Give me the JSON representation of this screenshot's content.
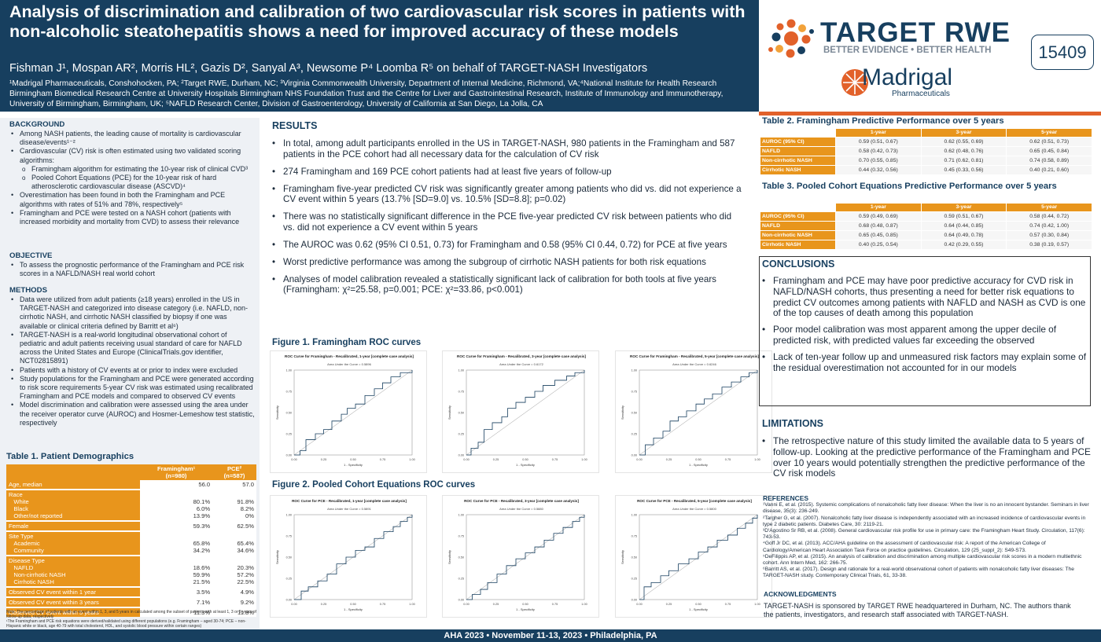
{
  "header": {
    "title": "Analysis of discrimination and calibration of two cardiovascular risk scores in patients with non-alcoholic steatohepatitis shows a need for improved accuracy of these models",
    "authors": "Fishman J¹, Mospan AR², Morris HL², Gazis D², Sanyal A³, Newsome P⁴ Loomba R⁵ on behalf of TARGET-NASH Investigators",
    "affiliations": "¹Madrigal Pharmaceuticals, Conshohocken, PA; ²Target RWE, Durham, NC; ³Virginia Commonwealth University, Department of Internal Medicine, Richmond, VA;⁴National Institute for Health Research Birmingham Biomedical Research Centre at University Hospitals Birmingham NHS Foundation Trust and the Centre for Liver and Gastrointestinal Research, Institute of Immunology and Immunotherapy, University of Birmingham, Birmingham, UK; ⁵NAFLD Research Center, Division of Gastroenterology, University of California at San Diego, La Jolla, CA",
    "logo_target_name": "TARGET RWE",
    "logo_target_tagline": "BETTER EVIDENCE • BETTER HEALTH",
    "logo_madrigal_name": "Madrigal",
    "logo_madrigal_sub": "Pharmaceuticals",
    "poster_number": "15409",
    "colors": {
      "navy": "#173f5f",
      "orange": "#e8951c",
      "accent": "#e2612a"
    }
  },
  "background": {
    "heading": "BACKGROUND",
    "items": [
      {
        "text": "Among NASH patients, the leading cause of mortality is cardiovascular disease/events¹⁻²"
      },
      {
        "text": "Cardiovascular (CV) risk is often estimated using two validated scoring algorithms:",
        "sub": [
          "Framingham algorithm for estimating the 10-year risk of clinical CVD³",
          "Pooled Cohort Equations (PCE) for the 10-year risk of hard atherosclerotic cardiovascular disease (ASCVD)⁴"
        ]
      },
      {
        "text": "Overestimation has been found in both the Framingham and PCE algorithms with rates of 51% and 78%, respectively⁵"
      },
      {
        "text": "Framingham and PCE were tested on a NASH cohort (patients with increased morbidity and mortality from CVD) to assess their relevance"
      }
    ]
  },
  "objective": {
    "heading": "OBJECTIVE",
    "items": [
      "To assess the prognostic performance of the Framingham and PCE risk scores in a NAFLD/NASH real world cohort"
    ]
  },
  "methods": {
    "heading": "METHODS",
    "items": [
      "Data were utilized from adult patients (≥18 years) enrolled in the US in TARGET-NASH and categorized into disease category (i.e. NAFLD, non-cirrhotic NASH, and cirrhotic NASH classified by biopsy if one was available or clinical criteria defined by Barritt et al⁶)",
      "TARGET-NASH is a real-world longitudinal observational cohort of pediatric and adult patients receiving usual standard of care for NAFLD across the United States and Europe (ClinicalTrials.gov identifier, NCT02815891)",
      "Patients with a history of CV events at or prior to index were excluded",
      "Study populations for the Framingham and PCE were generated according to risk score requirements 5-year CV risk was estimated using recalibrated Framingham and PCE models and compared to observed CV events",
      "Model discrimination and calibration were assessed using the area under the receiver operator curve (AUROC) and Hosmer-Lemeshow test statistic, respectively"
    ]
  },
  "table1": {
    "heading": "Table 1. Patient Demographics",
    "col_fram": "Framingham¹",
    "col_fram_n": "(n=980)",
    "col_pce": "PCE²",
    "col_pce_n": "(n=587)",
    "rows": [
      {
        "label": "Age, median",
        "fram": "56.0",
        "pce": "57.0"
      },
      {
        "label": "Race",
        "sub": [
          "White",
          "Black",
          "Other/not reported"
        ],
        "fram": [
          "80.1%",
          "6.0%",
          "13.9%"
        ],
        "pce": [
          "91.8%",
          "8.2%",
          "0%"
        ]
      },
      {
        "label": "Female",
        "fram": "59.3%",
        "pce": "62.5%"
      },
      {
        "label": "Site Type",
        "sub": [
          "Academic",
          "Community"
        ],
        "fram": [
          "65.8%",
          "34.2%"
        ],
        "pce": [
          "65.4%",
          "34.6%"
        ]
      },
      {
        "label": "Disease Type",
        "sub": [
          "NAFLD",
          "Non-cirrhotic NASH",
          "Cirrhotic NASH"
        ],
        "fram": [
          "18.6%",
          "59.9%",
          "21.5%"
        ],
        "pce": [
          "20.3%",
          "57.2%",
          "22.5%"
        ]
      },
      {
        "label": "Observed CV event within 1 year",
        "fram": "3.5%",
        "pce": "4.9%"
      },
      {
        "label": "Observed CV event within 3 years",
        "fram": "7.1%",
        "pce": "9.2%"
      },
      {
        "label": "Observed CV event within 5 years",
        "fram": "11.3%",
        "pce": "11.8%"
      }
    ],
    "note1": "Note: The percentage of patients with an event within 1, 3, and 5 years in calculated among the subset of patients with at least 1, 3 or 5 years of follow-up data, respectively",
    "note2": "¹The Framingham and PCE risk equations were derived/validated using different populations (e.g. Framingham – aged 30-74; PCE – non-Hispanic white or black, age 40-79 with total cholesterol, HDL, and systolic blood pressure within certain ranges)"
  },
  "results": {
    "heading": "RESULTS",
    "items": [
      "In total, among adult participants enrolled in the US in TARGET-NASH, 980 patients in the Framingham and 587 patients in the PCE cohort had all necessary data for the calculation of CV risk",
      "274 Framingham and 169 PCE cohort patients had at least five years of follow-up",
      "Framingham five-year predicted CV risk was significantly greater among patients who did vs. did not experience a CV event within 5 years (13.7% [SD=9.0] vs. 10.5% [SD=8.8]; p=0.02)",
      "There was no statistically significant difference in the PCE five-year predicted CV risk between patients who did vs. did not experience a CV event within 5 years",
      "The AUROC was 0.62 (95% CI 0.51, 0.73) for Framingham and 0.58 (95% CI 0.44, 0.72) for PCE at five years",
      "Worst predictive performance was among the subgroup of cirrhotic NASH patients for both risk equations",
      "Analyses of model calibration revealed a statistically significant lack of calibration for both tools at five years (Framingham: χ²=25.58, p=0.001; PCE: χ²=33.86, p<0.001)"
    ]
  },
  "figure1": {
    "heading": "Figure 1. Framingham ROC curves",
    "charts": [
      {
        "title": "ROC Curve for Framingham - Recalibrated, 1-year [complete case analysis]",
        "subtitle": "Area Under the Curve = 0.5896"
      },
      {
        "title": "ROC Curve for Framingham - Recalibrated, 3-year [complete case analysis]",
        "subtitle": "Area Under the Curve = 0.6172"
      },
      {
        "title": "ROC Curve for Framingham - Recalibrated, 5-year [complete case analysis]",
        "subtitle": "Area Under the Curve = 0.6246"
      }
    ]
  },
  "figure2": {
    "heading": "Figure 2. Pooled Cohort Equations ROC curves",
    "charts": [
      {
        "title": "ROC Curve for PCE - Recalibrated, 1-year [complete case analysis]",
        "subtitle": "Area Under the Curve = 0.5891"
      },
      {
        "title": "ROC Curve for PCE - Recalibrated, 3-year [complete case analysis]",
        "subtitle": "Area Under the Curve = 0.5880"
      },
      {
        "title": "ROC Curve for PCE - Recalibrated, 5-year [complete case analysis]",
        "subtitle": "Area Under the Curve = 0.5800"
      }
    ]
  },
  "chart_data": [
    {
      "type": "line",
      "title": "ROC Curve for Framingham - Recalibrated, 1-year [complete case analysis]",
      "subtitle": "Area Under the Curve = 0.5896",
      "xlabel": "1 - Specificity",
      "ylabel": "Sensitivity",
      "xlim": [
        0,
        1
      ],
      "ylim": [
        0,
        1
      ],
      "ticks": [
        "0.00",
        "0.25",
        "0.50",
        "0.75",
        "1.00"
      ],
      "series": [
        {
          "x": [
            0,
            0.05,
            0.1,
            0.18,
            0.25,
            0.32,
            0.4,
            0.45,
            0.52,
            0.6,
            0.68,
            0.75,
            0.82,
            0.9,
            1
          ],
          "y": [
            0,
            0.05,
            0.18,
            0.25,
            0.3,
            0.4,
            0.48,
            0.55,
            0.6,
            0.7,
            0.78,
            0.85,
            0.92,
            0.97,
            1
          ]
        },
        {
          "x": [
            0,
            1
          ],
          "y": [
            0,
            1
          ]
        }
      ]
    },
    {
      "type": "line",
      "title": "ROC Curve for Framingham - Recalibrated, 3-year [complete case analysis]",
      "subtitle": "Area Under the Curve = 0.6172",
      "xlabel": "1 - Specificity",
      "ylabel": "Sensitivity",
      "xlim": [
        0,
        1
      ],
      "ylim": [
        0,
        1
      ],
      "ticks": [
        "0.00",
        "0.25",
        "0.50",
        "0.75",
        "1.00"
      ],
      "series": [
        {
          "x": [
            0,
            0.04,
            0.1,
            0.15,
            0.22,
            0.3,
            0.35,
            0.42,
            0.5,
            0.58,
            0.65,
            0.75,
            0.85,
            0.92,
            1
          ],
          "y": [
            0,
            0.08,
            0.15,
            0.3,
            0.38,
            0.45,
            0.55,
            0.62,
            0.68,
            0.75,
            0.82,
            0.88,
            0.93,
            0.97,
            1
          ]
        },
        {
          "x": [
            0,
            1
          ],
          "y": [
            0,
            1
          ]
        }
      ]
    },
    {
      "type": "line",
      "title": "ROC Curve for Framingham - Recalibrated, 5-year [complete case analysis]",
      "subtitle": "Area Under the Curve = 0.6246",
      "xlabel": "1 - Specificity",
      "ylabel": "Sensitivity",
      "xlim": [
        0,
        1
      ],
      "ylim": [
        0,
        1
      ],
      "ticks": [
        "0.00",
        "0.25",
        "0.50",
        "0.75",
        "1.00"
      ],
      "series": [
        {
          "x": [
            0,
            0.05,
            0.12,
            0.2,
            0.26,
            0.33,
            0.4,
            0.48,
            0.55,
            0.62,
            0.7,
            0.78,
            0.86,
            0.93,
            1
          ],
          "y": [
            0,
            0.12,
            0.2,
            0.28,
            0.4,
            0.45,
            0.52,
            0.6,
            0.66,
            0.72,
            0.8,
            0.86,
            0.92,
            0.97,
            1
          ]
        },
        {
          "x": [
            0,
            1
          ],
          "y": [
            0,
            1
          ]
        }
      ]
    },
    {
      "type": "line",
      "title": "ROC Curve for PCE - Recalibrated, 1-year [complete case analysis]",
      "subtitle": "Area Under the Curve = 0.5891",
      "xlabel": "1 - Specificity",
      "ylabel": "Sensitivity",
      "xlim": [
        0,
        1
      ],
      "ylim": [
        0,
        1
      ],
      "ticks": [
        "0.00",
        "0.25",
        "0.50",
        "0.75",
        "1.00"
      ],
      "series": [
        {
          "x": [
            0,
            0.06,
            0.12,
            0.2,
            0.28,
            0.36,
            0.44,
            0.52,
            0.6,
            0.68,
            0.76,
            0.84,
            0.9,
            0.96,
            1
          ],
          "y": [
            0,
            0.1,
            0.15,
            0.22,
            0.3,
            0.42,
            0.5,
            0.58,
            0.62,
            0.72,
            0.8,
            0.86,
            0.92,
            0.97,
            1
          ]
        },
        {
          "x": [
            0,
            1
          ],
          "y": [
            0,
            1
          ]
        }
      ]
    },
    {
      "type": "line",
      "title": "ROC Curve for PCE - Recalibrated, 3-year [complete case analysis]",
      "subtitle": "Area Under the Curve = 0.5880",
      "xlabel": "1 - Specificity",
      "ylabel": "Sensitivity",
      "xlim": [
        0,
        1
      ],
      "ylim": [
        0,
        1
      ],
      "ticks": [
        "0.00",
        "0.25",
        "0.50",
        "0.75",
        "1.00"
      ],
      "series": [
        {
          "x": [
            0,
            0.05,
            0.12,
            0.18,
            0.26,
            0.34,
            0.42,
            0.5,
            0.58,
            0.66,
            0.74,
            0.82,
            0.9,
            0.96,
            1
          ],
          "y": [
            0,
            0.06,
            0.12,
            0.2,
            0.3,
            0.4,
            0.48,
            0.55,
            0.62,
            0.7,
            0.78,
            0.85,
            0.92,
            0.97,
            1
          ]
        },
        {
          "x": [
            0,
            1
          ],
          "y": [
            0,
            1
          ]
        }
      ]
    },
    {
      "type": "line",
      "title": "ROC Curve for PCE - Recalibrated, 5-year [complete case analysis]",
      "subtitle": "Area Under the Curve = 0.5800",
      "xlabel": "1 - Specificity",
      "ylabel": "Sensitivity",
      "xlim": [
        0,
        1
      ],
      "ylim": [
        0,
        1
      ],
      "ticks": [
        "0.00",
        "0.25",
        "0.50",
        "0.75",
        "1.00"
      ],
      "series": [
        {
          "x": [
            0,
            0.04,
            0.1,
            0.18,
            0.25,
            0.33,
            0.42,
            0.5,
            0.58,
            0.66,
            0.75,
            0.83,
            0.9,
            0.96,
            1
          ],
          "y": [
            0,
            0.15,
            0.2,
            0.28,
            0.34,
            0.42,
            0.48,
            0.56,
            0.62,
            0.7,
            0.76,
            0.84,
            0.9,
            0.96,
            1
          ]
        },
        {
          "x": [
            0,
            1
          ],
          "y": [
            0,
            1
          ]
        }
      ]
    }
  ],
  "table2": {
    "heading": "Table 2. Framingham Predictive Performance over 5 years",
    "cols": [
      "1-year",
      "3-year",
      "5-year"
    ],
    "rows": [
      {
        "label": "AUROC (95% CI)",
        "vals": [
          "0.59 (0.51, 0.67)",
          "0.62 (0.55, 0.69)",
          "0.62 (0.51, 0.73)"
        ]
      },
      {
        "label": "NAFLD",
        "vals": [
          "0.58 (0.42, 0.73)",
          "0.62 (0.48, 0.76)",
          "0.65 (0.45, 0.84)"
        ]
      },
      {
        "label": "Non-cirrhotic NASH",
        "vals": [
          "0.70 (0.55, 0.85)",
          "0.71 (0.62, 0.81)",
          "0.74 (0.58, 0.89)"
        ]
      },
      {
        "label": "Cirrhotic NASH",
        "vals": [
          "0.44 (0.32, 0.56)",
          "0.45 (0.33, 0.56)",
          "0.40 (0.21, 0.60)"
        ]
      }
    ]
  },
  "table3": {
    "heading": "Table 3. Pooled Cohort Equations Predictive Performance over 5 years",
    "cols": [
      "1-year",
      "3-year",
      "5-year"
    ],
    "rows": [
      {
        "label": "AUROC (95% CI)",
        "vals": [
          "0.59 (0.49, 0.69)",
          "0.59 (0.51, 0.67)",
          "0.58 (0.44, 0.72)"
        ]
      },
      {
        "label": "NAFLD",
        "vals": [
          "0.68 (0.48, 0.87)",
          "0.64 (0.44, 0.85)",
          "0.74 (0.42, 1.00)"
        ]
      },
      {
        "label": "Non-cirrhotic NASH",
        "vals": [
          "0.65 (0.45, 0.85)",
          "0.64 (0.49, 0.78)",
          "0.57 (0.30, 0.84)"
        ]
      },
      {
        "label": "Cirrhotic NASH",
        "vals": [
          "0.40 (0.25, 0.54)",
          "0.42 (0.29, 0.55)",
          "0.38 (0.19, 0.57)"
        ]
      }
    ]
  },
  "conclusions": {
    "heading": "CONCLUSIONS",
    "items": [
      "Framingham and PCE may have poor predictive accuracy for CVD risk in NAFLD/NASH cohorts, thus presenting a need for better risk equations to predict CV outcomes among patients with NAFLD and NASH as CVD is one of the top causes of death among this population",
      "Poor model calibration was most apparent among the upper decile of predicted risk, with predicted values far exceeding the observed",
      "Lack of ten-year follow up and unmeasured risk factors may explain some of the residual overestimation not accounted for in our models"
    ]
  },
  "limitations": {
    "heading": "LIMITATIONS",
    "items": [
      "The retrospective nature of this study limited the available data to 5 years of follow-up. Looking at the predictive performance of the Framingham and PCE over 10 years would potentially strengthen the predictive performance of the CV risk models"
    ]
  },
  "references": {
    "heading": "REFERENCES",
    "items": [
      "¹Vanni E, et al. (2015). Systemic complications of nonalcoholic fatty liver disease: When the liver is no an innocent bystander. Seminars in liver disease, 35(3): 236-249.",
      "²Targher G, et al. (2007). Nonalcoholic fatty liver disease is independently associated with an increased incidence of cardiovascular events in type 2 diabetic patients. Diabetes Care, 30: 2119-21.",
      "³D'Agostino Sr RB, et al. (2008). General cardiovascular risk profile for use in primary care: the Framingham Heart Study. Circulation, 117(6): 743-53.",
      "⁴Goff Jr DC, et al. (2013). ACC/AHA guideline on the assessment of cardiovascular risk: A report of the American College of Cardiology/American Heart Association Task Force on practice guidelines. Circulation, 129 (25_suppl_2): S49-S73.",
      "⁵DeFilippis AP, et al. (2015). An analysis of calibration and discrimination among multiple cardiovascular risk scores in a modern multiethnic cohort. Ann Intern Med, 162: 266-75.",
      "⁶Barritt AS, et al. (2017). Design and rationale for a real-world observational cohort of patients with nonalcoholic fatty liver diseases: The TARGET-NASH study. Contemporary Clinical Trials, 61, 33-38."
    ]
  },
  "acknowledgments": {
    "heading": "ACKNOWLEDGMENTS",
    "text": "TARGET-NASH is sponsored by TARGET RWE headquartered in Durham, NC. The authors thank the patients, investigators, and research staff associated with TARGET-NASH."
  },
  "footer": {
    "text": "AHA 2023 • November 11-13, 2023 • Philadelphia, PA"
  }
}
